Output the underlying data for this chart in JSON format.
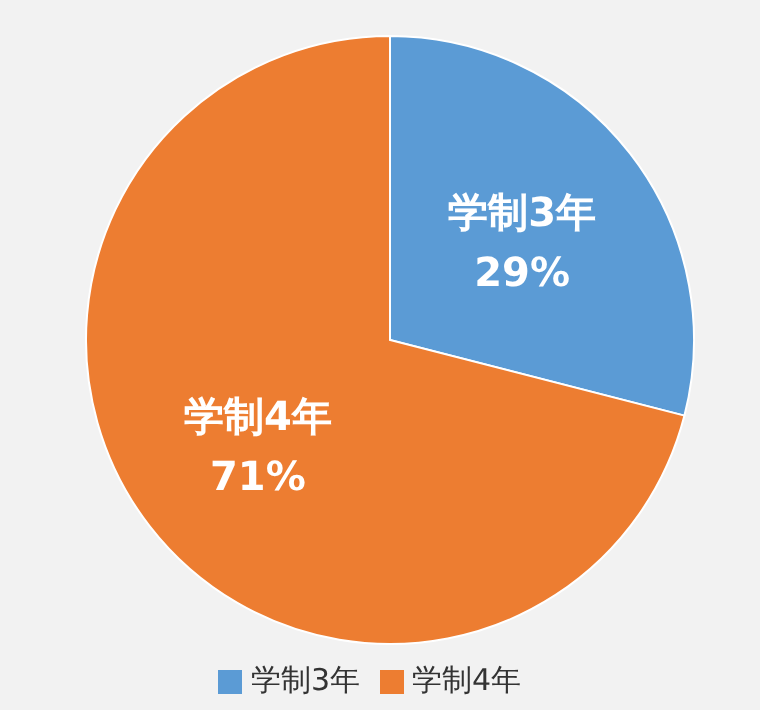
{
  "chart_data": {
    "type": "pie",
    "categories": [
      "学制3年",
      "学制4年"
    ],
    "values": [
      29,
      71
    ],
    "colors": [
      "#5b9bd5",
      "#ed7d31"
    ],
    "value_labels": [
      "29%",
      "71%"
    ],
    "legend": "bottom"
  }
}
